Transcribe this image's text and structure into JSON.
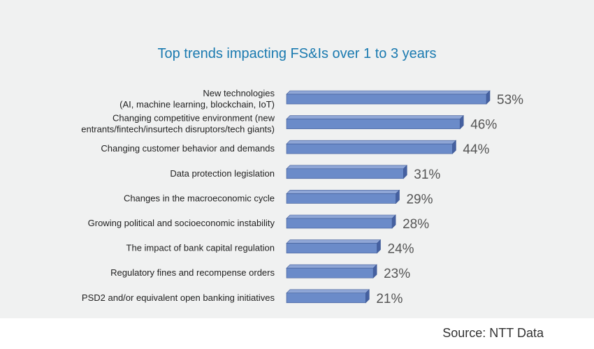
{
  "colors": {
    "title": "#1a7ab0",
    "bar_front": "#6b8bc9",
    "bar_top": "#8fa6d6",
    "bar_side": "#4560a0",
    "bar_edge": "#3f5a96",
    "label": "#222222",
    "value": "#555555"
  },
  "source": "Source: NTT Data",
  "chart_data": {
    "type": "bar",
    "orientation": "horizontal",
    "title": "Top trends impacting FS&Is over 1 to 3 years",
    "categories": [
      [
        "New technologies",
        "(AI, machine learning, blockchain, IoT)"
      ],
      [
        "Changing competitive environment (new",
        "entrants/fintech/insurtech disruptors/tech giants)"
      ],
      [
        "Changing customer behavior and demands"
      ],
      [
        "Data protection legislation"
      ],
      [
        "Changes in the macroeconomic cycle"
      ],
      [
        "Growing political and socioeconomic instability"
      ],
      [
        "The impact of bank capital regulation"
      ],
      [
        "Regulatory fines and recompense orders"
      ],
      [
        "PSD2 and/or equivalent open banking initiatives"
      ]
    ],
    "values": [
      53,
      46,
      44,
      31,
      29,
      28,
      24,
      23,
      21
    ],
    "value_labels": [
      "53%",
      "46%",
      "44%",
      "31%",
      "29%",
      "28%",
      "24%",
      "23%",
      "21%"
    ],
    "xlim": [
      0,
      53
    ],
    "grid": false,
    "legend": "none"
  }
}
